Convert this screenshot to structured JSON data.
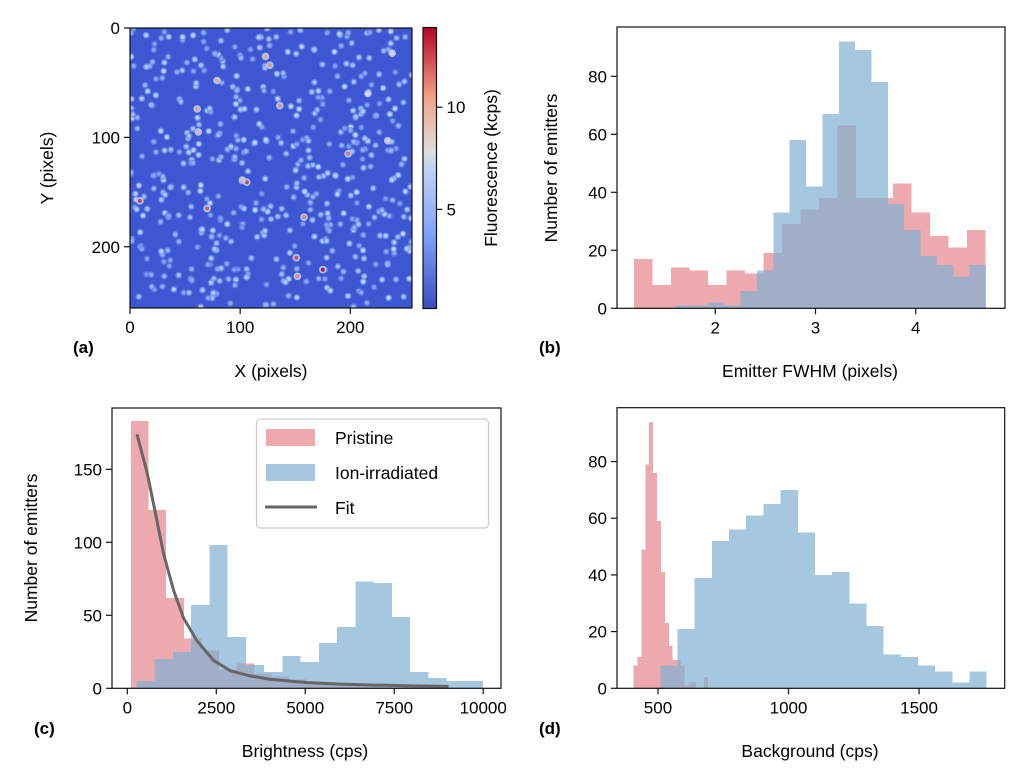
{
  "figure": {
    "colors": {
      "pristine": "#e6848b",
      "irradiated": "#7fb1d3",
      "fit": "#666666",
      "axis": "#000000",
      "legend_border": "#cccccc"
    },
    "bar_alpha": 0.7
  },
  "chart_data": [
    {
      "panel": "a",
      "panel_label": "(a)",
      "type": "heatmap",
      "title": "",
      "xlabel": "X (pixels)",
      "ylabel": "Y (pixels)",
      "xlim": [
        0,
        256
      ],
      "ylim": [
        256,
        0
      ],
      "xticks": [
        0,
        100,
        200
      ],
      "xtick_labels": [
        "0",
        "100",
        "200"
      ],
      "yticks": [
        0,
        100,
        200
      ],
      "ytick_labels": [
        "0",
        "100",
        "200"
      ],
      "colormap": "coolwarm",
      "colorbar": {
        "label": "Fluorescence (kcps)",
        "range": [
          0.15,
          13.9
        ],
        "ticks": [
          5,
          10
        ],
        "tick_labels": [
          "5",
          "10"
        ]
      },
      "background_level_kcps": 1.3,
      "random_emitter_count": 520,
      "bright_emitters": [
        {
          "x": 123,
          "y": 26,
          "v": 10.5
        },
        {
          "x": 127,
          "y": 34,
          "v": 10.8
        },
        {
          "x": 79,
          "y": 48,
          "v": 10.2
        },
        {
          "x": 61,
          "y": 74,
          "v": 10.6
        },
        {
          "x": 136,
          "y": 71,
          "v": 10.9
        },
        {
          "x": 62,
          "y": 95,
          "v": 9.8
        },
        {
          "x": 198,
          "y": 115,
          "v": 11.5
        },
        {
          "x": 106,
          "y": 141,
          "v": 12.5
        },
        {
          "x": 102,
          "y": 139,
          "v": 9.5
        },
        {
          "x": 9,
          "y": 158,
          "v": 12.6
        },
        {
          "x": 70,
          "y": 165,
          "v": 12.0
        },
        {
          "x": 158,
          "y": 173,
          "v": 11.2
        },
        {
          "x": 151,
          "y": 210,
          "v": 12.2
        },
        {
          "x": 175,
          "y": 221,
          "v": 13.5
        },
        {
          "x": 152,
          "y": 227,
          "v": 11.0
        },
        {
          "x": 234,
          "y": 103,
          "v": 8.5
        },
        {
          "x": 238,
          "y": 23,
          "v": 8.5
        },
        {
          "x": 216,
          "y": 60,
          "v": 8.0
        }
      ]
    },
    {
      "panel": "b",
      "panel_label": "(b)",
      "type": "bar",
      "subtype": "overlaid-histogram",
      "title": "",
      "xlabel": "Emitter FWHM (pixels)",
      "ylabel": "Number of emitters",
      "xlim": [
        1.02,
        4.89
      ],
      "ylim": [
        0,
        97
      ],
      "xticks": [
        2,
        3,
        4
      ],
      "xtick_labels": [
        "2",
        "3",
        "4"
      ],
      "yticks": [
        0,
        20,
        40,
        60,
        80
      ],
      "ytick_labels": [
        "0",
        "20",
        "40",
        "60",
        "80"
      ],
      "series": [
        {
          "name": "Pristine",
          "color_key": "pristine",
          "bin_start": 1.19,
          "bin_width": 0.1845,
          "values": [
            17,
            8,
            14,
            13,
            8,
            13,
            12,
            19,
            29,
            34,
            38,
            63,
            38,
            38,
            43,
            33,
            25,
            21,
            27
          ]
        },
        {
          "name": "Ion-irradiated",
          "color_key": "irradiated",
          "bin_start": 1.6,
          "bin_width": 0.1632,
          "values": [
            1,
            1,
            2,
            1,
            6,
            13,
            33,
            58,
            42,
            67,
            92,
            89,
            78,
            36,
            27,
            18,
            15,
            11,
            15
          ]
        }
      ],
      "legend": null
    },
    {
      "panel": "c",
      "panel_label": "(c)",
      "type": "bar",
      "subtype": "overlaid-histogram-with-fit",
      "title": "",
      "xlabel": "Brightness (cps)",
      "ylabel": "Number of emitters",
      "xlim": [
        -430,
        10500
      ],
      "ylim": [
        0,
        192
      ],
      "xticks": [
        0,
        2500,
        5000,
        7500,
        10000
      ],
      "xtick_labels": [
        "0",
        "2500",
        "5000",
        "7500",
        "10000"
      ],
      "yticks": [
        0,
        50,
        100,
        150
      ],
      "ytick_labels": [
        "0",
        "50",
        "100",
        "150"
      ],
      "series": [
        {
          "name": "Pristine",
          "color_key": "pristine",
          "bin_start": 104,
          "bin_width": 495,
          "values": [
            183,
            122,
            62,
            34,
            26,
            13,
            17,
            10,
            8,
            6,
            4,
            3,
            3,
            2,
            2,
            2,
            1,
            1
          ]
        },
        {
          "name": "Ion-irradiated",
          "color_key": "irradiated",
          "bin_start": 253,
          "bin_width": 513,
          "values": [
            5,
            20,
            25,
            57,
            98,
            35,
            16,
            11,
            22,
            18,
            31,
            42,
            73,
            72,
            49,
            11,
            7,
            5,
            5
          ]
        }
      ],
      "fit": {
        "name": "Fit",
        "color_key": "fit",
        "x": [
          272,
          554,
          740,
          1021,
          1302,
          1583,
          1959,
          2427,
          2896,
          3410,
          4000,
          5000,
          6000,
          7000,
          8000,
          9025
        ],
        "y": [
          174,
          148,
          126,
          92,
          67,
          48,
          32.5,
          19,
          12,
          8.7,
          6.2,
          4.0,
          2.9,
          2.2,
          1.7,
          1.3
        ]
      },
      "legend": {
        "placement": "top-right",
        "entries": [
          "Pristine",
          "Ion-irradiated",
          "Fit"
        ]
      }
    },
    {
      "panel": "d",
      "panel_label": "(d)",
      "type": "bar",
      "subtype": "overlaid-histogram",
      "title": "",
      "xlabel": "Background (cps)",
      "ylabel": "",
      "xlim": [
        343,
        1828
      ],
      "ylim": [
        0,
        99
      ],
      "xticks": [
        500,
        1000,
        1500
      ],
      "xtick_labels": [
        "500",
        "1000",
        "1500"
      ],
      "yticks": [
        0,
        20,
        40,
        60,
        80
      ],
      "ytick_labels": [
        "0",
        "20",
        "40",
        "60",
        "80"
      ],
      "series": [
        {
          "name": "Pristine",
          "color_key": "pristine",
          "bin_start": 406.5,
          "bin_width": 15,
          "values": [
            8,
            11,
            49,
            79,
            94,
            76,
            59,
            41,
            23,
            15,
            10,
            10,
            8,
            1,
            2,
            2,
            0,
            0,
            4
          ]
        },
        {
          "name": "Ion-irradiated",
          "color_key": "irradiated",
          "bin_start": 509,
          "bin_width": 65.8,
          "values": [
            8,
            21,
            39,
            52,
            56,
            61,
            65,
            70,
            55,
            40,
            41,
            30,
            22,
            12,
            11,
            8,
            6,
            2,
            6
          ]
        }
      ],
      "legend": null
    }
  ]
}
